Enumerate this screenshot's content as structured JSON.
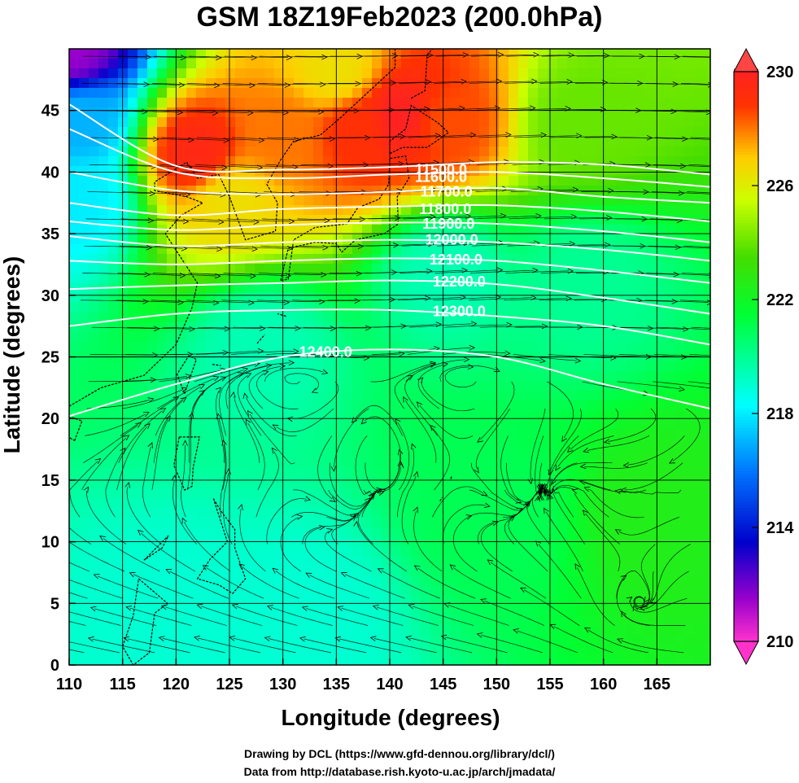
{
  "chart_data": {
    "type": "heatmap",
    "title": "GSM 18Z19Feb2023 (200.0hPa)",
    "xlabel": "Longitude (degrees)",
    "ylabel": "Latitude  (degrees)",
    "xlim": [
      110,
      170
    ],
    "ylim": [
      0,
      50
    ],
    "x_ticks": [
      110,
      115,
      120,
      125,
      130,
      135,
      140,
      145,
      150,
      155,
      160,
      165
    ],
    "y_ticks": [
      0,
      5,
      10,
      15,
      20,
      25,
      30,
      35,
      40,
      45
    ],
    "grid": true,
    "colorbar": {
      "ticks": [
        210,
        214,
        218,
        222,
        226,
        230
      ],
      "range": [
        210,
        230
      ],
      "colors": [
        "#ff33cc",
        "#9900cc",
        "#0000cc",
        "#0077ff",
        "#00ffff",
        "#00ff33",
        "#33cc00",
        "#ccff00",
        "#ffcc00",
        "#ff3300",
        "#ff4444"
      ]
    },
    "contours": [
      {
        "label": "11500.0",
        "values": [
          [
            110,
            45.5
          ],
          [
            120,
            40.5
          ],
          [
            130,
            40.2
          ],
          [
            140,
            40.4
          ],
          [
            150,
            40.8
          ],
          [
            160,
            40.6
          ],
          [
            170,
            39.8
          ]
        ]
      },
      {
        "label": "11600.0",
        "values": [
          [
            110,
            43.5
          ],
          [
            120,
            40.0
          ],
          [
            130,
            39.5
          ],
          [
            140,
            39.8
          ],
          [
            150,
            40.0
          ],
          [
            160,
            39.5
          ],
          [
            170,
            38.8
          ]
        ]
      },
      {
        "label": "11700.0",
        "values": [
          [
            110,
            40.0
          ],
          [
            120,
            38.5
          ],
          [
            130,
            38.2
          ],
          [
            140,
            38.4
          ],
          [
            150,
            38.7
          ],
          [
            160,
            38.0
          ],
          [
            170,
            37.5
          ]
        ]
      },
      {
        "label": "11800.0",
        "values": [
          [
            110,
            37.5
          ],
          [
            120,
            36.5
          ],
          [
            130,
            37.0
          ],
          [
            140,
            37.2
          ],
          [
            150,
            37.3
          ],
          [
            160,
            36.8
          ],
          [
            170,
            36.0
          ]
        ]
      },
      {
        "label": "11900.0",
        "values": [
          [
            110,
            36.0
          ],
          [
            120,
            35.3
          ],
          [
            130,
            35.7
          ],
          [
            140,
            35.9
          ],
          [
            150,
            35.8
          ],
          [
            160,
            35.2
          ],
          [
            170,
            34.3
          ]
        ]
      },
      {
        "label": "12000.0",
        "values": [
          [
            110,
            34.8
          ],
          [
            120,
            34.0
          ],
          [
            130,
            34.3
          ],
          [
            140,
            34.5
          ],
          [
            150,
            34.3
          ],
          [
            160,
            33.7
          ],
          [
            170,
            32.8
          ]
        ]
      },
      {
        "label": "12100.0",
        "values": [
          [
            110,
            32.8
          ],
          [
            120,
            32.5
          ],
          [
            130,
            32.8
          ],
          [
            140,
            33.0
          ],
          [
            150,
            32.8
          ],
          [
            160,
            32.0
          ],
          [
            170,
            31.0
          ]
        ]
      },
      {
        "label": "12200.0",
        "values": [
          [
            110,
            30.5
          ],
          [
            120,
            30.8
          ],
          [
            130,
            31.0
          ],
          [
            140,
            31.2
          ],
          [
            150,
            30.9
          ],
          [
            160,
            29.8
          ],
          [
            170,
            28.5
          ]
        ]
      },
      {
        "label": "12300.0",
        "values": [
          [
            110,
            27.5
          ],
          [
            120,
            28.5
          ],
          [
            130,
            28.8
          ],
          [
            140,
            28.8
          ],
          [
            150,
            28.3
          ],
          [
            160,
            27.5
          ],
          [
            170,
            26.0
          ]
        ]
      },
      {
        "label": "12400.0",
        "values": [
          [
            110,
            20.2
          ],
          [
            120,
            22.8
          ],
          [
            130,
            25.0
          ],
          [
            140,
            25.6
          ],
          [
            150,
            25.0
          ],
          [
            160,
            22.8
          ],
          [
            170,
            20.8
          ]
        ]
      }
    ],
    "contour_labels": [
      {
        "text": "11500.0",
        "lon": 144.8,
        "lat": 40.2
      },
      {
        "text": "11600.0",
        "lon": 144.8,
        "lat": 39.6
      },
      {
        "text": "11700.0",
        "lon": 145.3,
        "lat": 38.4
      },
      {
        "text": "11800.0",
        "lon": 145.2,
        "lat": 37.0
      },
      {
        "text": "11900.0",
        "lon": 145.5,
        "lat": 35.8
      },
      {
        "text": "12000.0",
        "lon": 145.8,
        "lat": 34.5
      },
      {
        "text": "12100.0",
        "lon": 146.2,
        "lat": 32.9
      },
      {
        "text": "12200.0",
        "lon": 146.5,
        "lat": 31.1
      },
      {
        "text": "12300.0",
        "lon": 146.5,
        "lat": 28.7
      },
      {
        "text": "12400.0",
        "lon": 134.0,
        "lat": 25.4
      }
    ],
    "temperature_blobs": [
      {
        "lon": 110,
        "lat": 50,
        "value": 211.5
      },
      {
        "lon": 111,
        "lat": 44,
        "value": 217.0
      },
      {
        "lon": 111,
        "lat": 38,
        "value": 218.0
      },
      {
        "lon": 122,
        "lat": 41.5,
        "value": 229.5
      },
      {
        "lon": 130,
        "lat": 43,
        "value": 228.0
      },
      {
        "lon": 137,
        "lat": 43.5,
        "value": 229.0
      },
      {
        "lon": 141,
        "lat": 44.5,
        "value": 230.0
      },
      {
        "lon": 145,
        "lat": 44,
        "value": 228.5
      },
      {
        "lon": 125,
        "lat": 38,
        "value": 226.5
      },
      {
        "lon": 135,
        "lat": 48,
        "value": 226.5
      },
      {
        "lon": 158,
        "lat": 44,
        "value": 224.0
      },
      {
        "lon": 145,
        "lat": 32,
        "value": 219.5
      },
      {
        "lon": 158,
        "lat": 31,
        "value": 220.0
      },
      {
        "lon": 128,
        "lat": 26,
        "value": 219.5
      },
      {
        "lon": 132,
        "lat": 4,
        "value": 219.0
      },
      {
        "lon": 120,
        "lat": 4,
        "value": 219.0
      },
      {
        "lon": 150,
        "lat": 12,
        "value": 221.0
      },
      {
        "lon": 165,
        "lat": 12,
        "value": 222.5
      }
    ],
    "vortices": [
      {
        "lon": 147,
        "lat": 16.5
      },
      {
        "lon": 131,
        "lat": 16.0
      },
      {
        "lon": 162.5,
        "lat": 8.5
      }
    ]
  },
  "credits": {
    "line1": "Drawing by DCL (https://www.gfd-dennou.org/library/dcl/)",
    "line2": "Data from http://database.rish.kyoto-u.ac.jp/arch/jmadata/"
  }
}
